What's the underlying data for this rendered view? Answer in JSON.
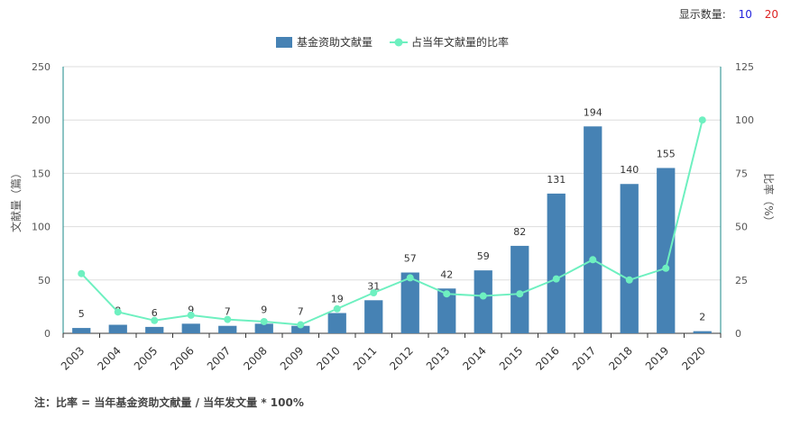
{
  "display_count": {
    "label": "显示数量:",
    "options": [
      "10",
      "20"
    ],
    "colors": [
      "#2222dd",
      "#dd2222"
    ]
  },
  "note": "注：比率 = 当年基金资助文献量 / 当年发文量 * 100%",
  "colors": {
    "bar": "#4682b4",
    "line": "#6ef0c0",
    "axis": "#1a8a8a",
    "grid": "#dddddd"
  },
  "chart_data": {
    "type": "bar",
    "categories": [
      "2003",
      "2004",
      "2005",
      "2006",
      "2007",
      "2008",
      "2009",
      "2010",
      "2011",
      "2012",
      "2013",
      "2014",
      "2015",
      "2016",
      "2017",
      "2018",
      "2019",
      "2020"
    ],
    "series": [
      {
        "name": "基金资助文献量",
        "type": "bar",
        "axis": "left",
        "values": [
          5,
          8,
          6,
          9,
          7,
          9,
          7,
          19,
          31,
          57,
          42,
          59,
          82,
          131,
          194,
          140,
          155,
          2
        ],
        "labels": [
          "5",
          "8",
          "6",
          "9",
          "7",
          "9",
          "7",
          "19",
          "31",
          "57",
          "42",
          "59",
          "82",
          "131",
          "194",
          "140",
          "155",
          "2"
        ]
      },
      {
        "name": "占当年文献量的比率",
        "type": "line",
        "axis": "right",
        "values": [
          28,
          10,
          6,
          8.5,
          6.5,
          5.5,
          4,
          11.5,
          19,
          26,
          18.5,
          17.5,
          18.5,
          25.5,
          34.5,
          25,
          30.5,
          100
        ]
      }
    ],
    "ylabel_left": "文献量（篇）",
    "ylabel_right": "比率（%）",
    "ylim_left": [
      0,
      250
    ],
    "ylim_right": [
      0,
      125
    ],
    "yticks_left": [
      "0",
      "50",
      "100",
      "150",
      "200",
      "250"
    ],
    "yticks_right": [
      "0",
      "25",
      "50",
      "75",
      "100",
      "125"
    ],
    "grid": true,
    "legend_position": "top-center"
  }
}
